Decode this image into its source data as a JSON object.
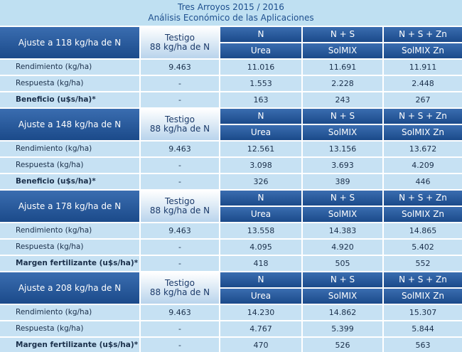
{
  "title": {
    "line1": "Tres Arroyos 2015 / 2016",
    "line2": "Análisis Económico de las Aplicaciones"
  },
  "blocks": [
    {
      "label": "Ajuste a 118 kg/ha de N",
      "testigo": [
        "Testigo",
        "88 kg/ha de N"
      ],
      "columns": [
        {
          "nutrient": "N",
          "product": "Urea"
        },
        {
          "nutrient": "N + S",
          "product": "SolMIX"
        },
        {
          "nutrient": "N + S + Zn",
          "product": "SolMIX Zn"
        }
      ],
      "rows": [
        {
          "label": "Rendimiento (kg/ha)",
          "values": [
            "9.463",
            "11.016",
            "11.691",
            "11.911"
          ]
        },
        {
          "label": "Respuesta (kg/ha)",
          "values": [
            "-",
            "1.553",
            "2.228",
            "2.448"
          ]
        },
        {
          "label": "Beneficio (u$s/ha)*",
          "values": [
            "-",
            "163",
            "243",
            "267"
          ]
        }
      ]
    },
    {
      "label": "Ajuste a 148 kg/ha de N",
      "testigo": [
        "Testigo",
        "88 kg/ha de N"
      ],
      "columns": [
        {
          "nutrient": "N",
          "product": "Urea"
        },
        {
          "nutrient": "N + S",
          "product": "SolMIX"
        },
        {
          "nutrient": "N + S + Zn",
          "product": "SolMIX Zn"
        }
      ],
      "rows": [
        {
          "label": "Rendimiento (kg/ha)",
          "values": [
            "9.463",
            "12.561",
            "13.156",
            "13.672"
          ]
        },
        {
          "label": "Respuesta (kg/ha)",
          "values": [
            "-",
            "3.098",
            "3.693",
            "4.209"
          ]
        },
        {
          "label": "Beneficio (u$s/ha)*",
          "values": [
            "-",
            "326",
            "389",
            "446"
          ]
        }
      ]
    },
    {
      "label": "Ajuste a 178 kg/ha de N",
      "testigo": [
        "Testigo",
        "88 kg/ha de N"
      ],
      "columns": [
        {
          "nutrient": "N",
          "product": "Urea"
        },
        {
          "nutrient": "N + S",
          "product": "SolMIX"
        },
        {
          "nutrient": "N + S + Zn",
          "product": "SolMIX Zn"
        }
      ],
      "rows": [
        {
          "label": "Rendimiento (kg/ha)",
          "values": [
            "9.463",
            "13.558",
            "14.383",
            "14.865"
          ]
        },
        {
          "label": "Respuesta (kg/ha)",
          "values": [
            "-",
            "4.095",
            "4.920",
            "5.402"
          ]
        },
        {
          "label": "Margen fertilizante (u$s/ha)*",
          "values": [
            "-",
            "418",
            "505",
            "552"
          ]
        }
      ]
    },
    {
      "label": "Ajuste a 208 kg/ha de N",
      "testigo": [
        "Testigo",
        "88 kg/ha de N"
      ],
      "columns": [
        {
          "nutrient": "N",
          "product": "Urea"
        },
        {
          "nutrient": "N + S",
          "product": "SolMIX"
        },
        {
          "nutrient": "N + S + Zn",
          "product": "SolMIX Zn"
        }
      ],
      "rows": [
        {
          "label": "Rendimiento (kg/ha)",
          "values": [
            "9.463",
            "14.230",
            "14.862",
            "15.307"
          ]
        },
        {
          "label": "Respuesta (kg/ha)",
          "values": [
            "-",
            "4.767",
            "5.399",
            "5.844"
          ]
        },
        {
          "label": "Margen fertilizante (u$s/ha)*",
          "values": [
            "-",
            "470",
            "526",
            "563"
          ]
        }
      ]
    }
  ]
}
